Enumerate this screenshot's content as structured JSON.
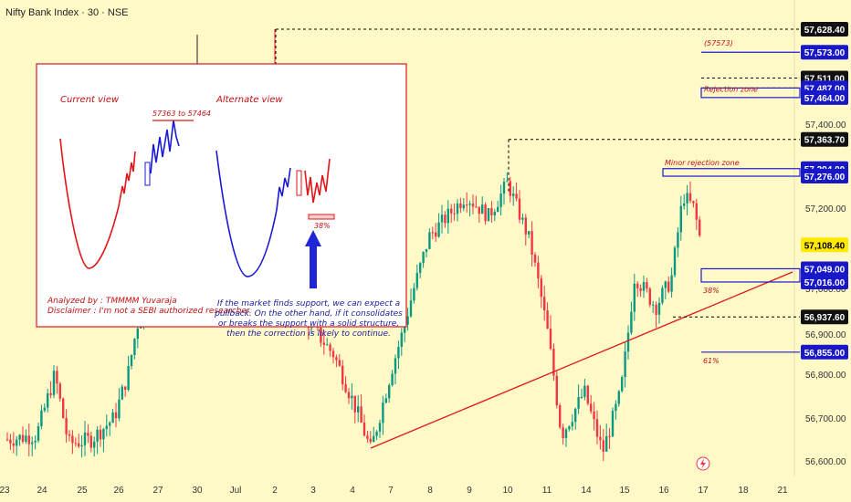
{
  "header": {
    "symbol": "Nifty Bank Index · 30 · NSE"
  },
  "chart_data": {
    "type": "candlestick",
    "ylim": [
      56560,
      57660
    ],
    "y_ticks": [
      56600,
      56700,
      56800,
      56900,
      57000,
      57200,
      57400
    ],
    "y_tick_labels": [
      "56,600.00",
      "56,700.00",
      "56,800.00",
      "56,900.00",
      "57,000.00",
      "57,200.00",
      "57,400.00"
    ],
    "x_tick_labels": [
      "23",
      "24",
      "25",
      "26",
      "27",
      "30",
      "Jul",
      "2",
      "3",
      "4",
      "7",
      "8",
      "9",
      "10",
      "11",
      "14",
      "15",
      "16",
      "17",
      "18",
      "21"
    ],
    "price_badges": [
      {
        "label": "57,628.40",
        "value": 57628.4,
        "style": "dark"
      },
      {
        "label": "57,573.00",
        "value": 57573,
        "style": "blue"
      },
      {
        "label": "57,511.00",
        "value": 57511,
        "style": "dark"
      },
      {
        "label": "57,487.00",
        "value": 57487,
        "style": "blue"
      },
      {
        "label": "57,464.00",
        "value": 57464,
        "style": "blue"
      },
      {
        "label": "57,363.70",
        "value": 57363.7,
        "style": "dark"
      },
      {
        "label": "57,294.00",
        "value": 57294,
        "style": "blue"
      },
      {
        "label": "57,276.00",
        "value": 57276,
        "style": "blue"
      },
      {
        "label": "57,108.40",
        "value": 57108.4,
        "style": "yellow"
      },
      {
        "label": "57,049.00",
        "value": 57049,
        "style": "blue"
      },
      {
        "label": "57,016.00",
        "value": 57016,
        "style": "blue"
      },
      {
        "label": "56,937.60",
        "value": 56937.6,
        "style": "dark"
      },
      {
        "label": "56,855.00",
        "value": 56855,
        "style": "blue"
      }
    ],
    "annotations": {
      "target_label": "(57573)",
      "rejection_zone": "Rejection zone",
      "minor_rejection_zone": "Minor rejection zone",
      "fib_38": "38%",
      "fib_61": "61%"
    },
    "inset": {
      "current_view": "Current view",
      "alternate_view": "Alternate view",
      "range_label": "57363 to 57464",
      "fib_label": "38%",
      "analyzed_by": "Analyzed by : TMMMM Yuvaraja",
      "disclaimer": "Disclaimer : I'm not a SEBI authorized researcher.",
      "note_lines": [
        "If the market finds support, we can expect a",
        "pullback. On the other hand, if it consolidates",
        "or breaks the support with a solid structure,",
        "then the correction is likely to continue."
      ]
    },
    "colors": {
      "up": "#089981",
      "down": "#f23645",
      "blue": "#1a1ad6",
      "red": "#e0161b",
      "bg": "#fff9c8"
    }
  }
}
